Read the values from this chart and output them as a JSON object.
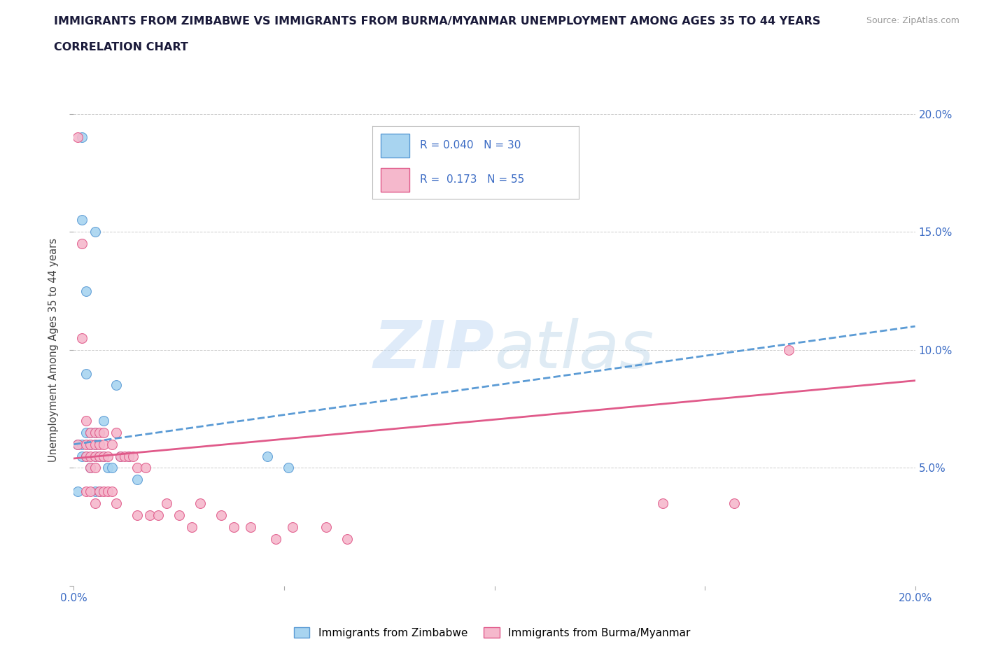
{
  "title_line1": "IMMIGRANTS FROM ZIMBABWE VS IMMIGRANTS FROM BURMA/MYANMAR UNEMPLOYMENT AMONG AGES 35 TO 44 YEARS",
  "title_line2": "CORRELATION CHART",
  "source_text": "Source: ZipAtlas.com",
  "ylabel": "Unemployment Among Ages 35 to 44 years",
  "xlim": [
    0.0,
    0.2
  ],
  "ylim": [
    0.0,
    0.2
  ],
  "color_zimbabwe": "#A8D4F0",
  "color_burma": "#F5B8CC",
  "color_zimbabwe_dark": "#5B9BD5",
  "color_burma_dark": "#E05A8A",
  "watermark_zip": "ZIP",
  "watermark_atlas": "atlas",
  "zimbabwe_x": [
    0.001,
    0.001,
    0.002,
    0.002,
    0.002,
    0.002,
    0.003,
    0.003,
    0.003,
    0.003,
    0.004,
    0.004,
    0.004,
    0.005,
    0.005,
    0.005,
    0.005,
    0.005,
    0.006,
    0.006,
    0.007,
    0.007,
    0.008,
    0.009,
    0.01,
    0.011,
    0.013,
    0.015,
    0.046,
    0.051
  ],
  "zimbabwe_y": [
    0.06,
    0.04,
    0.19,
    0.155,
    0.06,
    0.055,
    0.125,
    0.09,
    0.065,
    0.055,
    0.065,
    0.06,
    0.05,
    0.15,
    0.065,
    0.06,
    0.055,
    0.04,
    0.055,
    0.04,
    0.07,
    0.055,
    0.05,
    0.05,
    0.085,
    0.055,
    0.055,
    0.045,
    0.055,
    0.05
  ],
  "burma_x": [
    0.001,
    0.001,
    0.002,
    0.002,
    0.003,
    0.003,
    0.003,
    0.003,
    0.004,
    0.004,
    0.004,
    0.004,
    0.004,
    0.005,
    0.005,
    0.005,
    0.005,
    0.005,
    0.006,
    0.006,
    0.006,
    0.006,
    0.007,
    0.007,
    0.007,
    0.007,
    0.008,
    0.008,
    0.009,
    0.009,
    0.01,
    0.01,
    0.011,
    0.012,
    0.013,
    0.014,
    0.015,
    0.015,
    0.017,
    0.018,
    0.02,
    0.022,
    0.025,
    0.028,
    0.03,
    0.035,
    0.038,
    0.042,
    0.048,
    0.052,
    0.06,
    0.065,
    0.14,
    0.157,
    0.17
  ],
  "burma_y": [
    0.19,
    0.06,
    0.145,
    0.105,
    0.07,
    0.06,
    0.055,
    0.04,
    0.065,
    0.06,
    0.055,
    0.05,
    0.04,
    0.065,
    0.06,
    0.055,
    0.05,
    0.035,
    0.065,
    0.06,
    0.055,
    0.04,
    0.065,
    0.06,
    0.055,
    0.04,
    0.055,
    0.04,
    0.06,
    0.04,
    0.065,
    0.035,
    0.055,
    0.055,
    0.055,
    0.055,
    0.05,
    0.03,
    0.05,
    0.03,
    0.03,
    0.035,
    0.03,
    0.025,
    0.035,
    0.03,
    0.025,
    0.025,
    0.02,
    0.025,
    0.025,
    0.02,
    0.035,
    0.035,
    0.1
  ],
  "zim_reg_slope": 0.25,
  "zim_reg_intercept": 0.06,
  "bur_reg_slope": 0.165,
  "bur_reg_intercept": 0.054
}
